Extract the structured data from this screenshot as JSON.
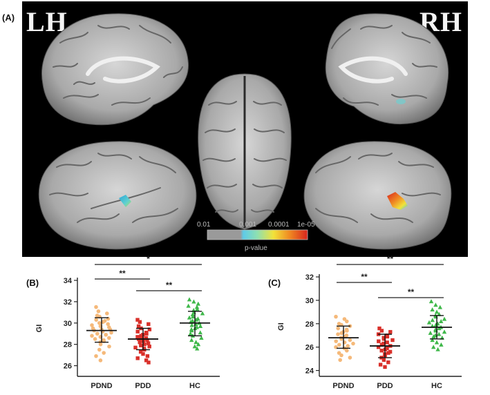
{
  "panel_a": {
    "label": "(A)",
    "left_hemisphere": "LH",
    "right_hemisphere": "RH",
    "colorbar": {
      "ticks": [
        "0.01",
        "0.001",
        "0.0001",
        "1e-05"
      ],
      "title": "p-value",
      "colors": [
        "#9a9a9a",
        "#7fd6f0",
        "#f2e23a",
        "#e0261f"
      ]
    }
  },
  "panel_b": {
    "label": "(B)"
  },
  "panel_c": {
    "label": "(C)"
  },
  "chart_data": [
    {
      "type": "scatter",
      "panel": "(B)",
      "categories": [
        "PDND",
        "PDD",
        "HC"
      ],
      "ylabel": "GI",
      "xlabel": "",
      "ylim": [
        25,
        34
      ],
      "yticks": [
        26,
        28,
        30,
        32,
        34
      ],
      "colors": [
        "#f5b97a",
        "#d9302a",
        "#3fb84a"
      ],
      "markers": [
        "circle",
        "square",
        "triangle"
      ],
      "series": [
        {
          "category": "PDND",
          "mean": 29.3,
          "sd_low": 28.2,
          "sd_high": 30.5,
          "values": [
            31.5,
            31.1,
            30.9,
            30.7,
            30.6,
            30.4,
            30.3,
            30.2,
            30.1,
            30.0,
            29.9,
            29.8,
            29.7,
            29.6,
            29.5,
            29.4,
            29.4,
            29.3,
            29.2,
            29.1,
            29.0,
            28.9,
            28.8,
            28.7,
            28.6,
            28.5,
            28.4,
            28.3,
            28.2,
            28.0,
            27.8,
            27.5,
            27.2,
            26.9,
            26.5
          ]
        },
        {
          "category": "PDD",
          "mean": 28.5,
          "sd_low": 27.5,
          "sd_high": 29.5,
          "values": [
            30.3,
            30.1,
            29.9,
            29.7,
            29.5,
            29.4,
            29.2,
            29.1,
            29.0,
            28.9,
            28.8,
            28.7,
            28.6,
            28.5,
            28.5,
            28.4,
            28.3,
            28.2,
            28.1,
            28.0,
            27.9,
            27.8,
            27.7,
            27.6,
            27.5,
            27.3,
            27.1,
            26.9,
            26.7,
            26.5,
            26.3
          ]
        },
        {
          "category": "HC",
          "mean": 30.0,
          "sd_low": 28.8,
          "sd_high": 31.1,
          "values": [
            32.2,
            32.0,
            31.8,
            31.6,
            31.5,
            31.3,
            31.2,
            31.0,
            30.9,
            30.8,
            30.6,
            30.5,
            30.4,
            30.3,
            30.2,
            30.1,
            30.0,
            29.9,
            29.8,
            29.7,
            29.6,
            29.5,
            29.4,
            29.3,
            29.1,
            29.0,
            28.8,
            28.6,
            28.4,
            28.2,
            28.0,
            27.8,
            27.6
          ]
        }
      ],
      "comparisons": [
        {
          "from": "PDND",
          "to": "HC",
          "label": "*"
        },
        {
          "from": "PDND",
          "to": "PDD",
          "label": "**"
        },
        {
          "from": "PDD",
          "to": "HC",
          "label": "**"
        }
      ]
    },
    {
      "type": "scatter",
      "panel": "(C)",
      "categories": [
        "PDND",
        "PDD",
        "HC"
      ],
      "ylabel": "GI",
      "xlabel": "",
      "ylim": [
        23.5,
        32
      ],
      "yticks": [
        24,
        26,
        28,
        30,
        32
      ],
      "colors": [
        "#f5b97a",
        "#d9302a",
        "#3fb84a"
      ],
      "markers": [
        "circle",
        "square",
        "triangle"
      ],
      "series": [
        {
          "category": "PDND",
          "mean": 26.8,
          "sd_low": 25.9,
          "sd_high": 27.8,
          "values": [
            28.6,
            28.4,
            28.2,
            28.0,
            27.9,
            27.8,
            27.6,
            27.5,
            27.4,
            27.3,
            27.2,
            27.1,
            27.0,
            26.9,
            26.8,
            26.7,
            26.6,
            26.5,
            26.4,
            26.3,
            26.2,
            26.1,
            26.0,
            25.9,
            25.7,
            25.5,
            25.3,
            25.1,
            24.9
          ]
        },
        {
          "category": "PDD",
          "mean": 26.1,
          "sd_low": 25.1,
          "sd_high": 27.1,
          "values": [
            27.6,
            27.4,
            27.3,
            27.1,
            27.0,
            26.9,
            26.8,
            26.7,
            26.6,
            26.5,
            26.4,
            26.3,
            26.2,
            26.1,
            26.0,
            25.9,
            25.8,
            25.7,
            25.6,
            25.5,
            25.4,
            25.3,
            25.1,
            24.9,
            24.7,
            24.5,
            24.3
          ]
        },
        {
          "category": "HC",
          "mean": 27.7,
          "sd_low": 26.7,
          "sd_high": 28.7,
          "values": [
            29.9,
            29.6,
            29.4,
            29.2,
            29.0,
            28.8,
            28.7,
            28.6,
            28.4,
            28.3,
            28.2,
            28.1,
            28.0,
            27.9,
            27.8,
            27.7,
            27.6,
            27.5,
            27.4,
            27.3,
            27.2,
            27.1,
            27.0,
            26.9,
            26.8,
            26.6,
            26.4,
            26.2,
            26.0,
            25.8
          ]
        }
      ],
      "comparisons": [
        {
          "from": "PDND",
          "to": "HC",
          "label": "**"
        },
        {
          "from": "PDND",
          "to": "PDD",
          "label": "**"
        },
        {
          "from": "PDD",
          "to": "HC",
          "label": "**"
        }
      ]
    }
  ]
}
